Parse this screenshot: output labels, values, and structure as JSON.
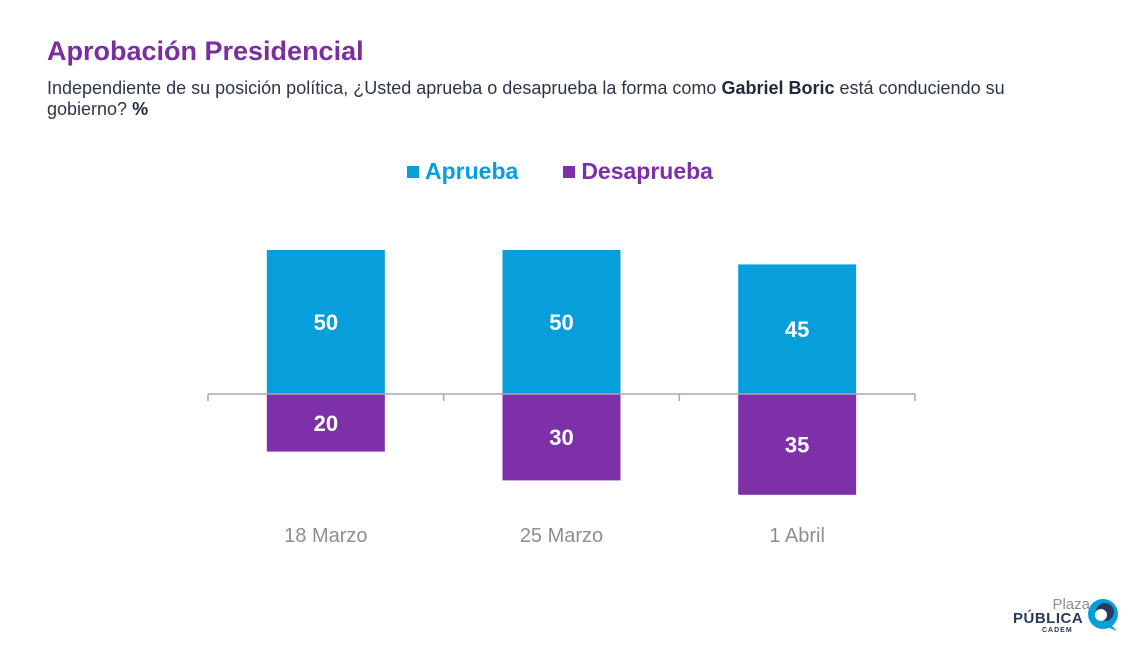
{
  "header": {
    "title": "Aprobación Presidencial",
    "subtitle_part1": "Independiente de su posición política, ¿Usted aprueba o desaprueba la forma como ",
    "subtitle_bold_name": "Gabriel Boric",
    "subtitle_part2": " está conduciendo su gobierno? ",
    "subtitle_bold_unit": "%"
  },
  "chart_data": {
    "type": "bar",
    "categories": [
      "18 Marzo",
      "25 Marzo",
      "1 Abril"
    ],
    "series": [
      {
        "name": "Aprueba",
        "color": "#069fdc",
        "values": [
          50,
          50,
          45
        ],
        "direction": "up"
      },
      {
        "name": "Desaprueba",
        "color": "#7e30a8",
        "values": [
          20,
          30,
          35
        ],
        "direction": "down"
      }
    ],
    "ylim": [
      -35,
      50
    ],
    "grid": false,
    "legend_position": "top-center"
  },
  "logo": {
    "line1": "Plaza",
    "line2": "PÚBLICA",
    "line3": "CADEM",
    "brand_colors": [
      "#069fdc",
      "#2a3a5c"
    ]
  }
}
